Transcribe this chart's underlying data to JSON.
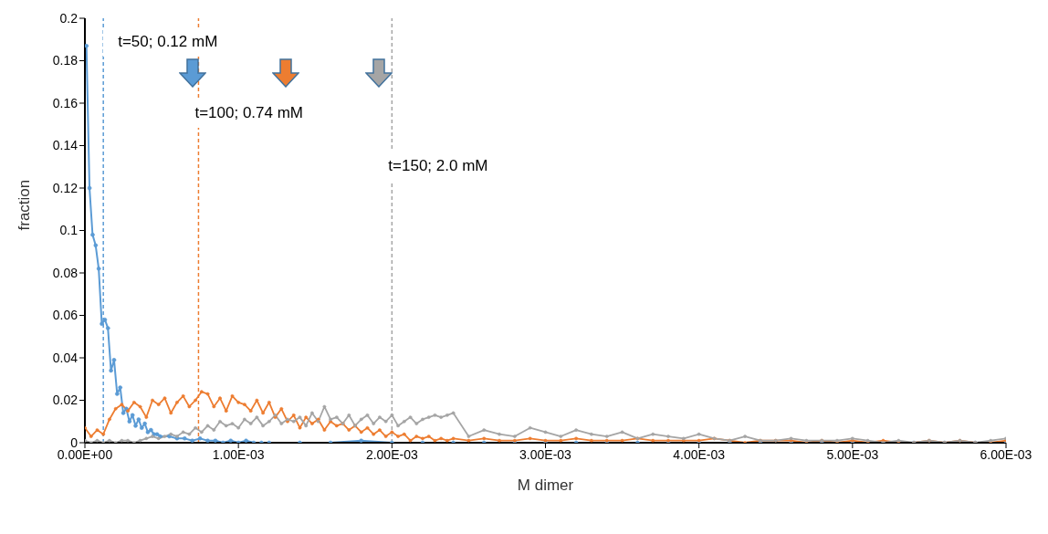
{
  "chart_data": {
    "type": "line",
    "xlabel": "M dimer",
    "ylabel": "fraction",
    "xlim": [
      0,
      0.006
    ],
    "xticks": [
      {
        "value": 0,
        "label": "0.00E+00"
      },
      {
        "value": 0.001,
        "label": "1.00E-03"
      },
      {
        "value": 0.002,
        "label": "2.00E-03"
      },
      {
        "value": 0.003,
        "label": "3.00E-03"
      },
      {
        "value": 0.004,
        "label": "4.00E-03"
      },
      {
        "value": 0.005,
        "label": "5.00E-03"
      },
      {
        "value": 0.006,
        "label": "6.00E-03"
      }
    ],
    "ylim": [
      0,
      0.2
    ],
    "yticks": [
      0,
      0.02,
      0.04,
      0.06,
      0.08,
      0.1,
      0.12,
      0.14,
      0.16,
      0.18,
      0.2
    ],
    "grid": false,
    "legend": false,
    "marker": "circle",
    "line_style": "solid",
    "series": [
      {
        "color": "#5b9bd5",
        "x": [
          1e-05,
          3e-05,
          5e-05,
          7e-05,
          9e-05,
          0.00011,
          0.00013,
          0.00015,
          0.00017,
          0.00019,
          0.00021,
          0.00023,
          0.00025,
          0.00027,
          0.00029,
          0.00031,
          0.00033,
          0.00035,
          0.00037,
          0.00039,
          0.00041,
          0.00043,
          0.00045,
          0.00047,
          0.00049,
          0.00055,
          0.0006,
          0.00065,
          0.0007,
          0.00075,
          0.0008,
          0.00085,
          0.0009,
          0.00095,
          0.001,
          0.00105,
          0.0011,
          0.00115,
          0.0012,
          0.0014,
          0.0016,
          0.0018,
          0.002,
          0.0022,
          0.0024,
          0.0026,
          0.0028,
          0.003,
          0.0032,
          0.0034,
          0.0036,
          0.0038,
          0.004,
          0.0042,
          0.0044,
          0.0046,
          0.0048,
          0.005,
          0.0052,
          0.0054,
          0.0056,
          0.0058,
          0.006
        ],
        "values": [
          0.187,
          0.12,
          0.098,
          0.093,
          0.082,
          0.056,
          0.058,
          0.054,
          0.034,
          0.039,
          0.023,
          0.026,
          0.014,
          0.016,
          0.01,
          0.013,
          0.008,
          0.011,
          0.007,
          0.009,
          0.005,
          0.006,
          0.004,
          0.004,
          0.003,
          0.003,
          0.002,
          0.002,
          0.001,
          0.002,
          0.001,
          0.001,
          0,
          0.001,
          0,
          0.001,
          0,
          0,
          0,
          0,
          0,
          0.001,
          0,
          0,
          0,
          0,
          0,
          0,
          0,
          0,
          0,
          0,
          0,
          0,
          0,
          0,
          0,
          0,
          0,
          0,
          0,
          0,
          0
        ]
      },
      {
        "color": "#ed7d31",
        "x": [
          0,
          4e-05,
          8e-05,
          0.00012,
          0.00016,
          0.0002,
          0.00024,
          0.00028,
          0.00032,
          0.00036,
          0.0004,
          0.00044,
          0.00048,
          0.00052,
          0.00056,
          0.0006,
          0.00064,
          0.00068,
          0.00072,
          0.00076,
          0.0008,
          0.00084,
          0.00088,
          0.00092,
          0.00096,
          0.001,
          0.00104,
          0.00108,
          0.00112,
          0.00116,
          0.0012,
          0.00124,
          0.00128,
          0.00132,
          0.00136,
          0.0014,
          0.00144,
          0.00148,
          0.00152,
          0.00156,
          0.0016,
          0.00164,
          0.00168,
          0.00172,
          0.00176,
          0.0018,
          0.00184,
          0.00188,
          0.00192,
          0.00196,
          0.002,
          0.00204,
          0.00208,
          0.00212,
          0.00216,
          0.0022,
          0.00224,
          0.00228,
          0.00232,
          0.00236,
          0.0024,
          0.0025,
          0.0026,
          0.0027,
          0.0028,
          0.0029,
          0.003,
          0.0031,
          0.0032,
          0.0033,
          0.0034,
          0.0035,
          0.0036,
          0.0037,
          0.0038,
          0.0039,
          0.004,
          0.0041,
          0.0042,
          0.0043,
          0.0044,
          0.0045,
          0.0046,
          0.0047,
          0.0048,
          0.0049,
          0.005,
          0.0051,
          0.0052,
          0.0053,
          0.0054,
          0.0055,
          0.0056,
          0.0057,
          0.0058,
          0.0059,
          0.006
        ],
        "values": [
          0.007,
          0.003,
          0.006,
          0.004,
          0.011,
          0.016,
          0.018,
          0.015,
          0.019,
          0.017,
          0.012,
          0.02,
          0.018,
          0.021,
          0.014,
          0.019,
          0.022,
          0.017,
          0.02,
          0.024,
          0.023,
          0.017,
          0.021,
          0.015,
          0.022,
          0.019,
          0.018,
          0.015,
          0.02,
          0.014,
          0.019,
          0.012,
          0.016,
          0.01,
          0.013,
          0.007,
          0.012,
          0.009,
          0.011,
          0.006,
          0.01,
          0.008,
          0.009,
          0.006,
          0.008,
          0.005,
          0.007,
          0.004,
          0.006,
          0.003,
          0.005,
          0.003,
          0.004,
          0.001,
          0.003,
          0.002,
          0.003,
          0.001,
          0.002,
          0.001,
          0.002,
          0.001,
          0.002,
          0.001,
          0.001,
          0.002,
          0.001,
          0.001,
          0.002,
          0.001,
          0.001,
          0.001,
          0.002,
          0.001,
          0.001,
          0.001,
          0.001,
          0.002,
          0.001,
          0,
          0.001,
          0.001,
          0.001,
          0,
          0.001,
          0,
          0.001,
          0,
          0.001,
          0,
          0,
          0.001,
          0,
          0.001,
          0,
          0,
          0.001
        ]
      },
      {
        "color": "#a5a5a5",
        "x": [
          0,
          4e-05,
          8e-05,
          0.00012,
          0.00016,
          0.0002,
          0.00024,
          0.00028,
          0.00032,
          0.00036,
          0.0004,
          0.00044,
          0.00048,
          0.00052,
          0.00056,
          0.0006,
          0.00064,
          0.00068,
          0.00072,
          0.00076,
          0.0008,
          0.00084,
          0.00088,
          0.00092,
          0.00096,
          0.001,
          0.00104,
          0.00108,
          0.00112,
          0.00116,
          0.0012,
          0.00124,
          0.00128,
          0.00132,
          0.00136,
          0.0014,
          0.00144,
          0.00148,
          0.00152,
          0.00156,
          0.0016,
          0.00164,
          0.00168,
          0.00172,
          0.00176,
          0.0018,
          0.00184,
          0.00188,
          0.00192,
          0.00196,
          0.002,
          0.00204,
          0.00208,
          0.00212,
          0.00216,
          0.0022,
          0.00224,
          0.00228,
          0.00232,
          0.00236,
          0.0024,
          0.0025,
          0.0026,
          0.0027,
          0.0028,
          0.0029,
          0.003,
          0.0031,
          0.0032,
          0.0033,
          0.0034,
          0.0035,
          0.0036,
          0.0037,
          0.0038,
          0.0039,
          0.004,
          0.0041,
          0.0042,
          0.0043,
          0.0044,
          0.0045,
          0.0046,
          0.0047,
          0.0048,
          0.0049,
          0.005,
          0.0051,
          0.0052,
          0.0053,
          0.0054,
          0.0055,
          0.0056,
          0.0057,
          0.0058,
          0.0059,
          0.006
        ],
        "values": [
          0.001,
          0,
          0.001,
          0,
          0.001,
          0,
          0.001,
          0.001,
          0,
          0.001,
          0.002,
          0.003,
          0.002,
          0.003,
          0.004,
          0.003,
          0.005,
          0.004,
          0.007,
          0.005,
          0.008,
          0.006,
          0.01,
          0.008,
          0.009,
          0.007,
          0.011,
          0.009,
          0.012,
          0.008,
          0.01,
          0.013,
          0.009,
          0.011,
          0.01,
          0.012,
          0.008,
          0.014,
          0.01,
          0.017,
          0.011,
          0.012,
          0.009,
          0.013,
          0.008,
          0.011,
          0.013,
          0.009,
          0.012,
          0.01,
          0.013,
          0.008,
          0.01,
          0.012,
          0.009,
          0.011,
          0.012,
          0.013,
          0.012,
          0.013,
          0.014,
          0.003,
          0.006,
          0.004,
          0.003,
          0.007,
          0.005,
          0.003,
          0.006,
          0.004,
          0.003,
          0.005,
          0.002,
          0.004,
          0.003,
          0.002,
          0.004,
          0.002,
          0.001,
          0.003,
          0.001,
          0.001,
          0.002,
          0.001,
          0.001,
          0.001,
          0.002,
          0.001,
          0,
          0.001,
          0,
          0.001,
          0,
          0.001,
          0,
          0.001,
          0.002
        ]
      }
    ],
    "ref_lines": [
      {
        "axis": "x",
        "value": 0.00012,
        "label": "t=50; 0.12 mM",
        "color": "#5b9bd5",
        "line_style": "dashed"
      },
      {
        "axis": "x",
        "value": 0.00074,
        "label": "t=100; 0.74 mM",
        "color": "#ed7d31",
        "line_style": "dashed"
      },
      {
        "axis": "x",
        "value": 0.002,
        "label": "t=150; 2.0 mM",
        "color": "#a5a5a5",
        "line_style": "dashed"
      }
    ]
  }
}
